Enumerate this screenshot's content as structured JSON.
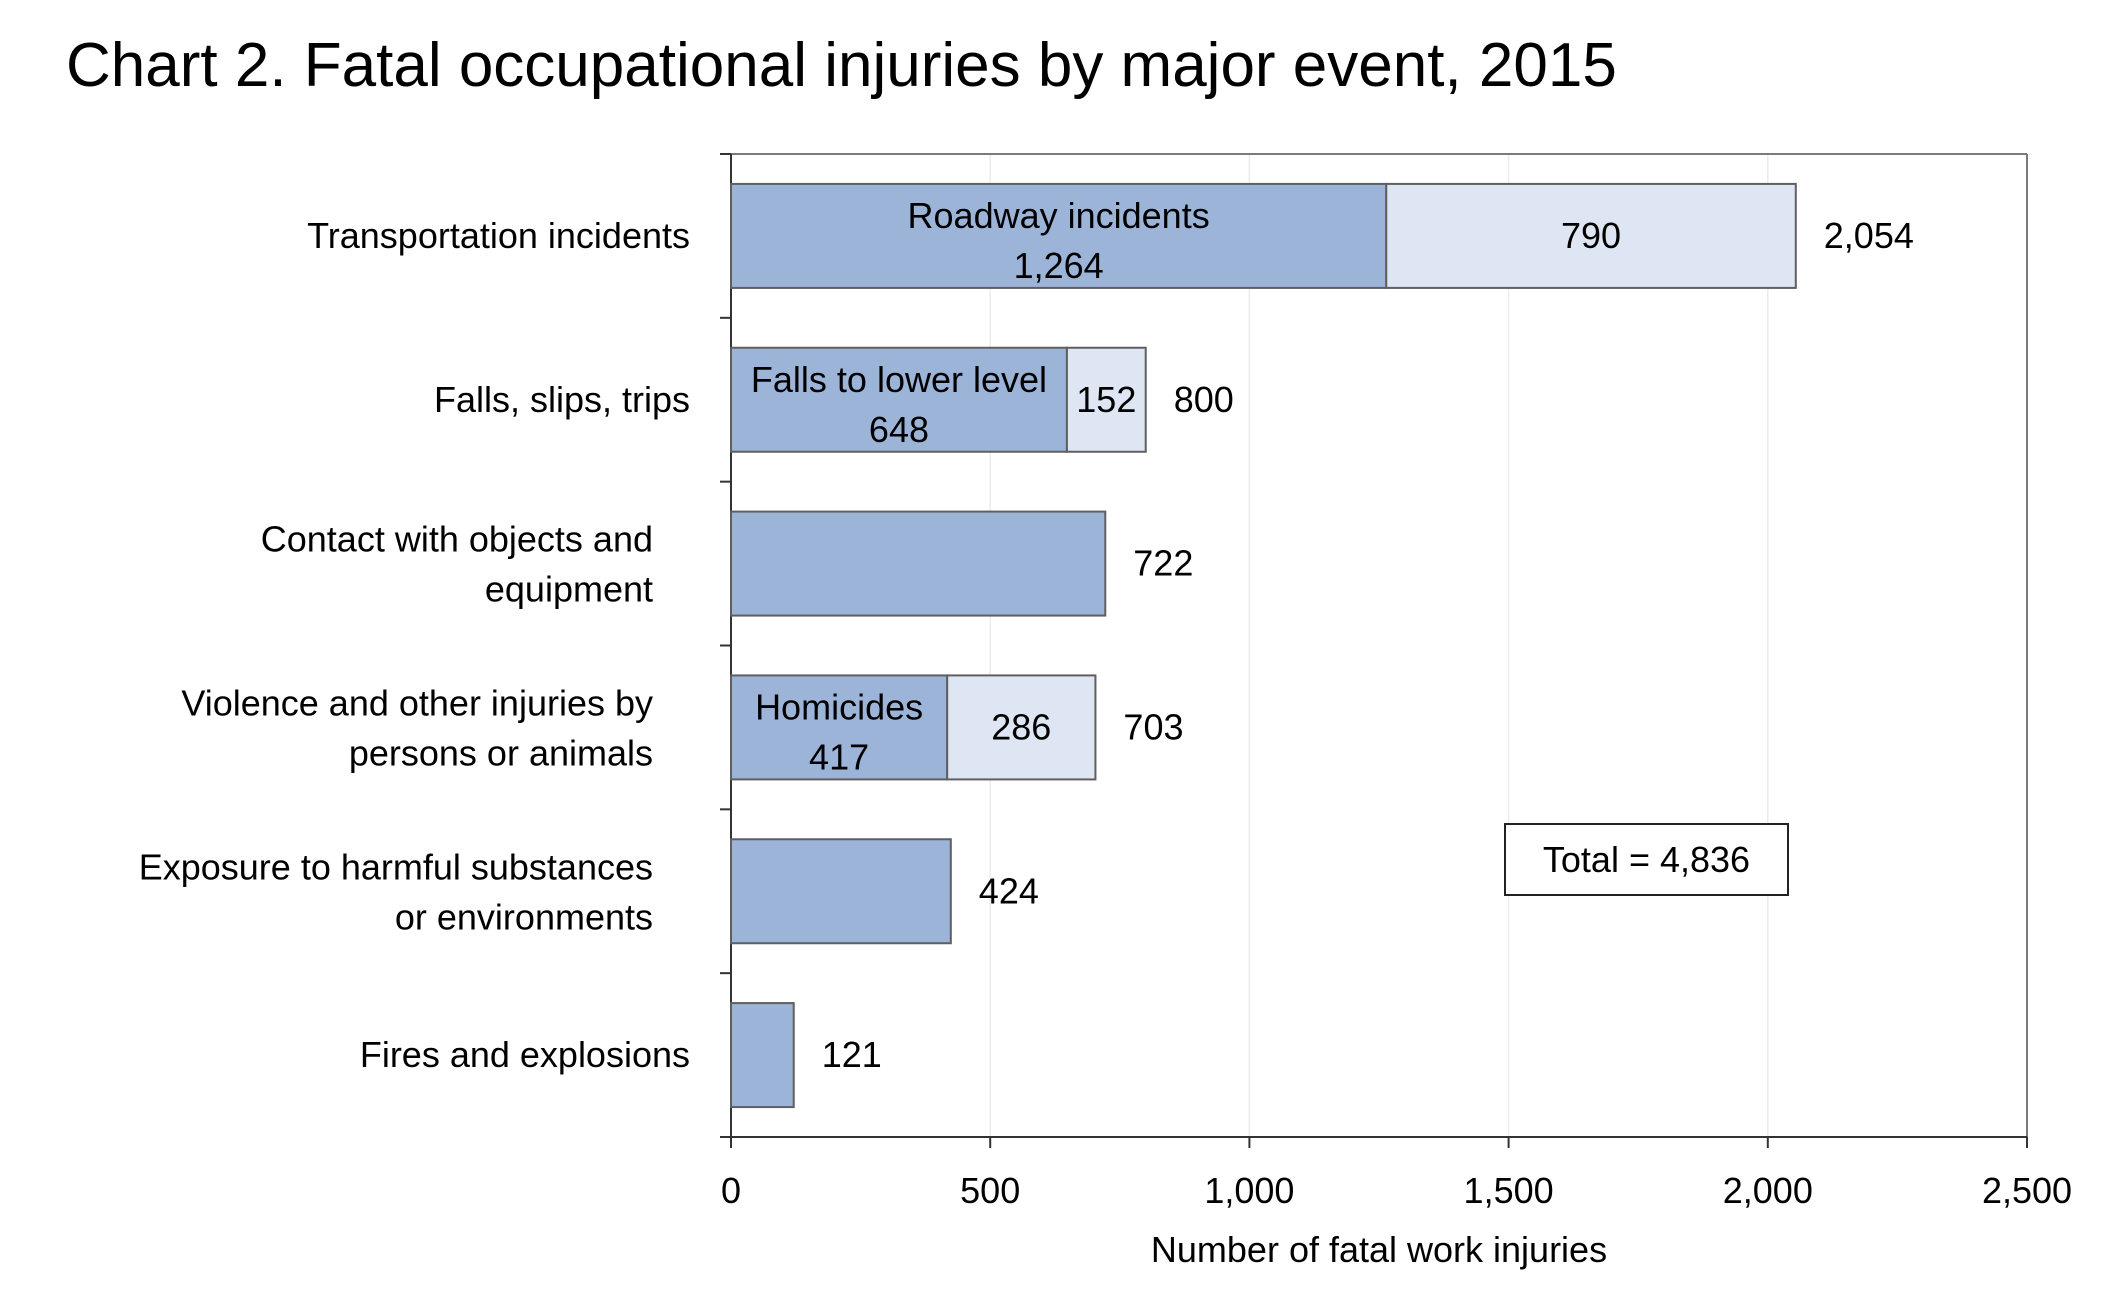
{
  "title": "Chart 2. Fatal occupational injuries by major event, 2015",
  "chart_data": {
    "type": "bar",
    "orientation": "horizontal",
    "stacked": true,
    "title": "Chart 2. Fatal occupational injuries by major event, 2015",
    "xlabel": "Number of fatal work injuries",
    "ylabel": "",
    "xlim": [
      0,
      2500
    ],
    "xticks": [
      0,
      500,
      1000,
      1500,
      2000,
      2500
    ],
    "xtick_labels": [
      "0",
      "500",
      "1,000",
      "1,500",
      "2,000",
      "2,500"
    ],
    "grid": "vertical",
    "colors": {
      "primary": "#9cb4d8",
      "secondary": "#dde6f2",
      "border": "#5f5f5f",
      "grid": "#ececec"
    },
    "categories": [
      {
        "label": [
          "Transportation incidents"
        ],
        "total": 2054,
        "total_label": "2,054",
        "segments": [
          {
            "name": "Roadway incidents",
            "value": 1264,
            "label": "1,264"
          },
          {
            "value": 790,
            "label": "790"
          }
        ]
      },
      {
        "label": [
          "Falls, slips, trips"
        ],
        "total": 800,
        "total_label": "800",
        "segments": [
          {
            "name": "Falls to lower level",
            "value": 648,
            "label": "648"
          },
          {
            "value": 152,
            "label": "152"
          }
        ]
      },
      {
        "label": [
          "Contact with objects and",
          "equipment"
        ],
        "total": 722,
        "total_label": "722",
        "segments": [
          {
            "value": 722
          }
        ]
      },
      {
        "label": [
          "Violence and other injuries by",
          "persons or animals"
        ],
        "total": 703,
        "total_label": "703",
        "segments": [
          {
            "name": "Homicides",
            "value": 417,
            "label": "417"
          },
          {
            "value": 286,
            "label": "286"
          }
        ]
      },
      {
        "label": [
          "Exposure to harmful substances",
          "or environments"
        ],
        "total": 424,
        "total_label": "424",
        "segments": [
          {
            "value": 424
          }
        ]
      },
      {
        "label": [
          "Fires and explosions"
        ],
        "total": 121,
        "total_label": "121",
        "segments": [
          {
            "value": 121
          }
        ]
      }
    ],
    "annotation": "Total = 4,836"
  }
}
